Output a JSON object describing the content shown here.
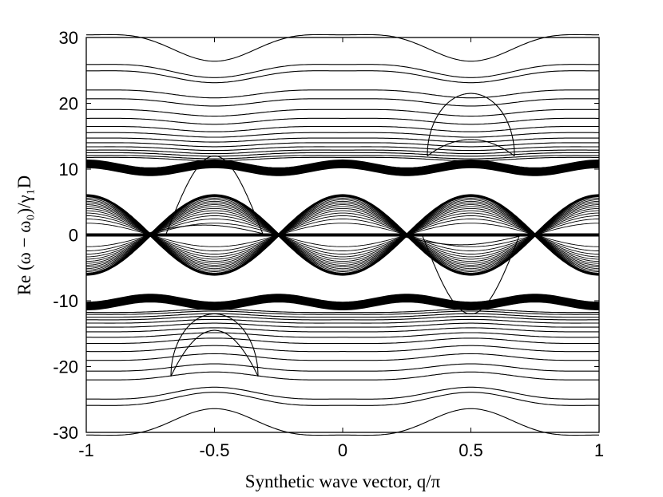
{
  "chart_data": {
    "type": "line",
    "title": "",
    "xlabel": "Synthetic wave vector, q/π",
    "ylabel": "Re (ω − ω₀)/γ₁D",
    "xlim": [
      -1,
      1
    ],
    "ylim": [
      -30,
      30
    ],
    "xticks": [
      -1,
      -0.5,
      0,
      0.5,
      1
    ],
    "yticks": [
      -30,
      -20,
      -10,
      0,
      10,
      20,
      30
    ],
    "xtick_labels": [
      "-1",
      "-0.5",
      "0",
      "0.5",
      "1"
    ],
    "ytick_labels": [
      "-30",
      "-20",
      "-10",
      "0",
      "10",
      "20",
      "30"
    ],
    "grid": false,
    "line_color": "#000000",
    "outer_bands_upper": [
      {
        "base": 29.0,
        "amp": 2.0
      },
      {
        "base": 25.2,
        "amp": 1.0
      },
      {
        "base": 24.3,
        "amp": 0.9
      },
      {
        "base": 21.6,
        "amp": 0.6
      },
      {
        "base": 20.3,
        "amp": 0.55
      },
      {
        "base": 18.7,
        "amp": 0.5
      },
      {
        "base": 17.4,
        "amp": 0.45
      },
      {
        "base": 16.2,
        "amp": 0.4
      },
      {
        "base": 15.3,
        "amp": 0.35
      },
      {
        "base": 14.5,
        "amp": 0.3
      },
      {
        "base": 13.8,
        "amp": 0.3
      },
      {
        "base": 13.2,
        "amp": 0.28
      },
      {
        "base": 12.7,
        "amp": 0.27
      },
      {
        "base": 12.3,
        "amp": 0.26
      },
      {
        "base": 11.9,
        "amp": 0.25
      },
      {
        "base": 11.6,
        "amp": 0.25
      }
    ],
    "dense_band_upper": {
      "center": 10.2,
      "half_width": 0.6,
      "amp": 1.0,
      "lines": 10
    },
    "dense_band_lower": {
      "center": -10.2,
      "half_width": 0.6,
      "amp": 1.0,
      "lines": 10
    },
    "central_band": {
      "max": 6.0,
      "min": 0.25,
      "lines": 14,
      "crossings": [
        -0.75,
        -0.25,
        0.25,
        0.75
      ]
    },
    "zero_band": {
      "center": 0.0,
      "half_width": 0.8
    },
    "edge_states": [
      {
        "q": [
          -0.69,
          -0.5,
          -0.31
        ],
        "peak": 12.0
      },
      {
        "q": [
          0.31,
          0.5,
          0.69
        ],
        "peak": -12.0
      }
    ],
    "loops": [
      {
        "q_range": [
          0.33,
          0.67
        ],
        "top": 21.5,
        "bottom": 12.0,
        "inner": 14.5
      },
      {
        "q_range": [
          -0.67,
          -0.33
        ],
        "top": -12.0,
        "bottom": -21.5,
        "inner": -14.5
      }
    ]
  }
}
